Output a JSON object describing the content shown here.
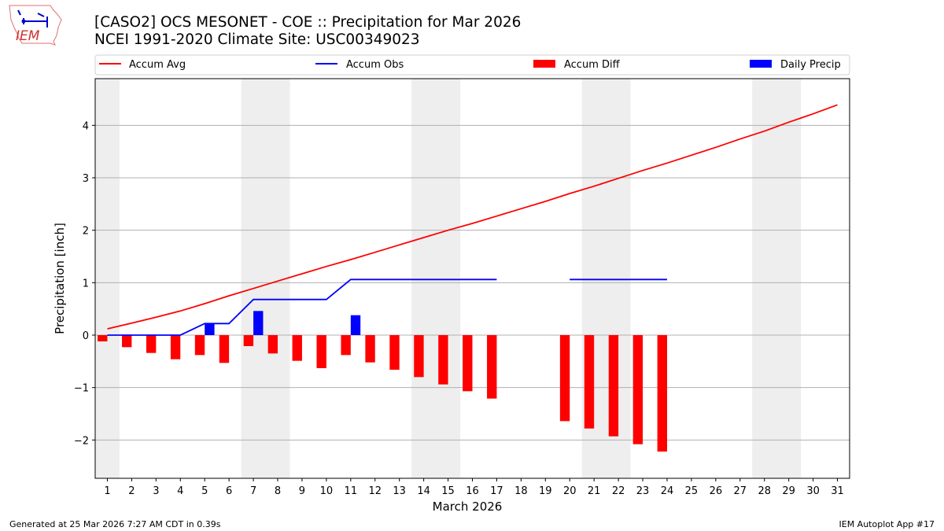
{
  "header": {
    "title": "[CASO2] OCS MESONET - COE :: Precipitation for Mar 2026",
    "subtitle": "NCEI 1991-2020 Climate Site: USC00349023",
    "logo_text": "IEM"
  },
  "footer": {
    "left": "Generated at 25 Mar 2026 7:27 AM CDT in 0.39s",
    "right": "IEM Autoplot App #17"
  },
  "chart_data": {
    "type": "bar",
    "xlabel": "March 2026",
    "ylabel": "Precipitation [inch]",
    "xlim": [
      0.5,
      31.5
    ],
    "ylim": [
      -2.73,
      4.89
    ],
    "yticks": [
      -2,
      -1,
      0,
      1,
      2,
      3,
      4
    ],
    "ytick_labels": [
      "−2",
      "−1",
      "0",
      "1",
      "2",
      "3",
      "4"
    ],
    "x": [
      1,
      2,
      3,
      4,
      5,
      6,
      7,
      8,
      9,
      10,
      11,
      12,
      13,
      14,
      15,
      16,
      17,
      18,
      19,
      20,
      21,
      22,
      23,
      24,
      25,
      26,
      27,
      28,
      29,
      30,
      31
    ],
    "grid": "horizontal",
    "legend_placement": "top",
    "weekend_shading": [
      [
        0.5,
        1.5
      ],
      [
        6.5,
        8.5
      ],
      [
        13.5,
        15.5
      ],
      [
        20.5,
        22.5
      ],
      [
        27.5,
        29.5
      ]
    ],
    "colors": {
      "accum_avg": "#ff0000",
      "accum_obs": "#0000ff",
      "accum_diff": "#ff0000",
      "daily_precip": "#0000ff",
      "shade": "#eeeeee",
      "grid": "#b0b0b0"
    },
    "series": [
      {
        "name": "Accum Avg",
        "kind": "line",
        "values": [
          0.12,
          0.23,
          0.34,
          0.46,
          0.6,
          0.75,
          0.89,
          1.03,
          1.17,
          1.31,
          1.44,
          1.58,
          1.72,
          1.86,
          2.0,
          2.13,
          2.27,
          2.41,
          2.55,
          2.7,
          2.84,
          2.99,
          3.14,
          3.28,
          3.43,
          3.58,
          3.74,
          3.89,
          4.06,
          4.22,
          4.39
        ]
      },
      {
        "name": "Accum Obs",
        "kind": "line",
        "values": [
          0,
          0,
          0,
          0,
          0.22,
          0.22,
          0.68,
          0.68,
          0.68,
          0.68,
          1.06,
          1.06,
          1.06,
          1.06,
          1.06,
          1.06,
          1.06,
          null,
          null,
          1.06,
          1.06,
          1.06,
          1.06,
          1.06,
          null,
          null,
          null,
          null,
          null,
          null,
          null
        ]
      },
      {
        "name": "Accum Diff",
        "kind": "bar",
        "values": [
          -0.12,
          -0.23,
          -0.34,
          -0.46,
          -0.38,
          -0.53,
          -0.21,
          -0.35,
          -0.49,
          -0.63,
          -0.38,
          -0.52,
          -0.66,
          -0.8,
          -0.94,
          -1.07,
          -1.21,
          null,
          null,
          -1.64,
          -1.78,
          -1.93,
          -2.08,
          -2.22,
          null,
          null,
          null,
          null,
          null,
          null,
          null
        ]
      },
      {
        "name": "Daily Precip",
        "kind": "bar",
        "values": [
          0,
          0,
          0,
          0,
          0.22,
          0,
          0.46,
          0,
          0,
          0,
          0.38,
          0,
          0,
          0,
          0,
          0,
          0,
          null,
          null,
          0,
          0,
          0,
          0,
          0,
          null,
          null,
          null,
          null,
          null,
          null,
          null
        ]
      }
    ]
  }
}
